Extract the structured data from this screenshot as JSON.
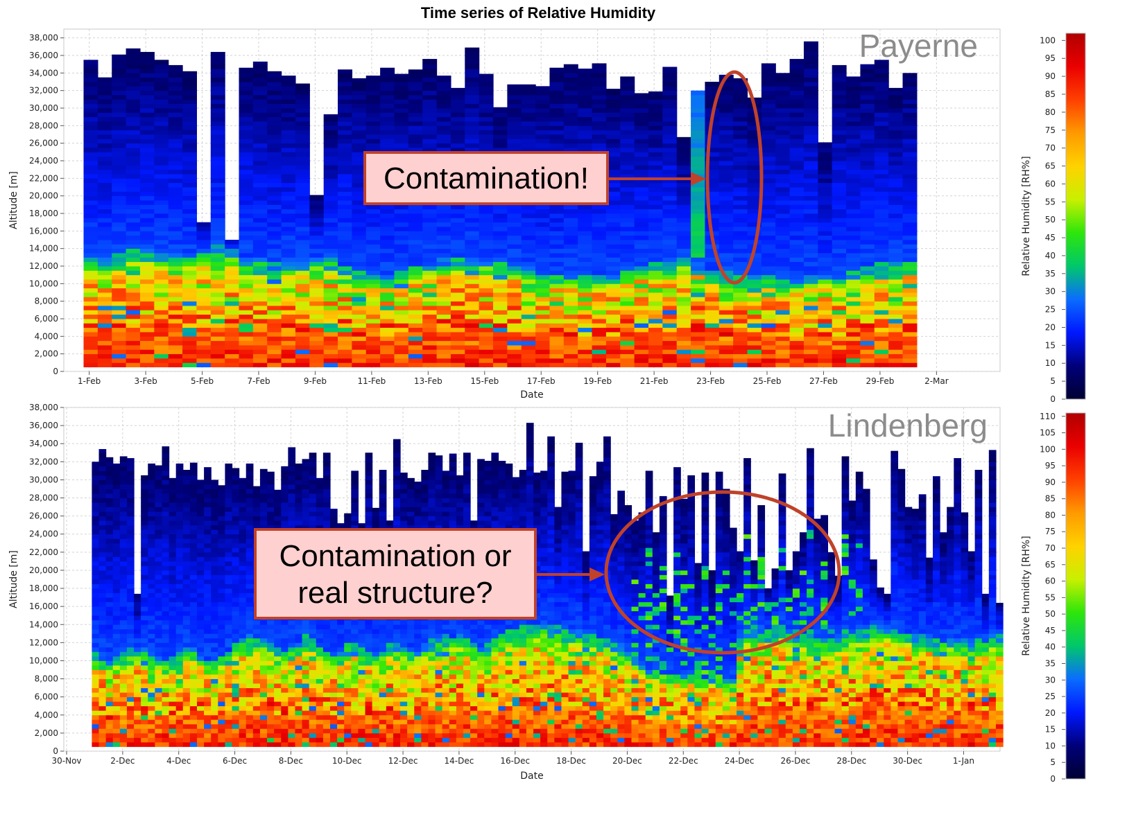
{
  "title": "Time series of Relative Humidity",
  "colorscale": {
    "stops": [
      "#000033",
      "#00007a",
      "#0018ff",
      "#0a6dff",
      "#00c86a",
      "#2ee60a",
      "#c8f000",
      "#ffd200",
      "#ff9a00",
      "#ff4000",
      "#ea0000",
      "#b00000"
    ],
    "no_data": "#ffffff",
    "frame": "#b0b0b0",
    "plot_border": "#c8c8c8",
    "grid": "#d2d2d2"
  },
  "annotation": {
    "arrow_color": "#c0422a",
    "box_fill": "#ffd0d0",
    "box_border": "#c0422a"
  },
  "chart_data": [
    {
      "type": "heatmap",
      "station": "Payerne",
      "xlabel": "Date",
      "ylabel": "Altitude [m]",
      "ylim": [
        0,
        39000
      ],
      "yticks": [
        "0",
        "2,000",
        "4,000",
        "6,000",
        "8,000",
        "10,000",
        "12,000",
        "14,000",
        "16,000",
        "18,000",
        "20,000",
        "22,000",
        "24,000",
        "26,000",
        "28,000",
        "30,000",
        "32,000",
        "34,000",
        "36,000",
        "38,000"
      ],
      "xlim": [
        -0.9,
        32.25
      ],
      "xticks": [
        {
          "x": 0,
          "label": "1-Feb"
        },
        {
          "x": 2,
          "label": "3-Feb"
        },
        {
          "x": 4,
          "label": "5-Feb"
        },
        {
          "x": 6,
          "label": "7-Feb"
        },
        {
          "x": 8,
          "label": "9-Feb"
        },
        {
          "x": 10,
          "label": "11-Feb"
        },
        {
          "x": 12,
          "label": "13-Feb"
        },
        {
          "x": 14,
          "label": "15-Feb"
        },
        {
          "x": 16,
          "label": "17-Feb"
        },
        {
          "x": 18,
          "label": "19-Feb"
        },
        {
          "x": 20,
          "label": "21-Feb"
        },
        {
          "x": 22,
          "label": "23-Feb"
        },
        {
          "x": 24,
          "label": "25-Feb"
        },
        {
          "x": 26,
          "label": "27-Feb"
        },
        {
          "x": 28,
          "label": "29-Feb"
        },
        {
          "x": 30,
          "label": "2-Mar"
        }
      ],
      "profiles_per_day": 2,
      "x_start": -0.2,
      "profile_tops": [
        35500,
        33500,
        36100,
        36800,
        36400,
        35500,
        34900,
        34200,
        17000,
        36400,
        15000,
        34600,
        35300,
        34200,
        33700,
        32800,
        20100,
        29300,
        34400,
        33400,
        33700,
        34600,
        33900,
        34400,
        35600,
        33700,
        32300,
        36900,
        33900,
        30100,
        32700,
        32700,
        32500,
        34600,
        35000,
        34500,
        35100,
        32200,
        33600,
        31700,
        31900,
        34700,
        26700,
        32000,
        33000,
        33800,
        33400,
        31200,
        35100,
        34000,
        35600,
        37600,
        26100,
        34900,
        33600,
        35000,
        35500,
        32300,
        34000
      ],
      "moist_layer_tops": [
        12900,
        12600,
        13400,
        13800,
        13700,
        13500,
        13300,
        13500,
        13900,
        14100,
        13800,
        13200,
        12600,
        12300,
        12500,
        12800,
        12900,
        12600,
        12000,
        11400,
        11000,
        10900,
        11300,
        11900,
        12300,
        12600,
        12800,
        12900,
        12700,
        12400,
        12000,
        11600,
        11300,
        11000,
        10800,
        10600,
        10700,
        11000,
        11400,
        11800,
        12200,
        12600,
        12900,
        12600,
        11800,
        11200,
        10900,
        10700,
        10600,
        10500,
        10500,
        10600,
        10800,
        11000,
        11300,
        11700,
        12100,
        12400,
        12500
      ],
      "contamination_profile": 43,
      "callout": {
        "text": "Contamination!"
      },
      "colorbar": {
        "label": "Relative Humidity [RH%]",
        "min": 0,
        "max": 102,
        "ticks": [
          "0",
          "5",
          "10",
          "15",
          "20",
          "25",
          "30",
          "35",
          "40",
          "45",
          "50",
          "55",
          "60",
          "65",
          "70",
          "75",
          "80",
          "85",
          "90",
          "95",
          "100"
        ]
      }
    },
    {
      "type": "heatmap",
      "station": "Lindenberg",
      "xlabel": "Date",
      "ylabel": "Altitude [m]",
      "ylim": [
        0,
        38000
      ],
      "yticks": [
        "0",
        "2,000",
        "4,000",
        "6,000",
        "8,000",
        "10,000",
        "12,000",
        "14,000",
        "16,000",
        "18,000",
        "20,000",
        "22,000",
        "24,000",
        "26,000",
        "28,000",
        "30,000",
        "32,000",
        "34,000",
        "36,000",
        "38,000"
      ],
      "xlim": [
        -0.1,
        33.3
      ],
      "xticks": [
        {
          "x": 0,
          "label": "30-Nov"
        },
        {
          "x": 2,
          "label": "2-Dec"
        },
        {
          "x": 4,
          "label": "4-Dec"
        },
        {
          "x": 6,
          "label": "6-Dec"
        },
        {
          "x": 8,
          "label": "8-Dec"
        },
        {
          "x": 10,
          "label": "10-Dec"
        },
        {
          "x": 12,
          "label": "12-Dec"
        },
        {
          "x": 14,
          "label": "14-Dec"
        },
        {
          "x": 16,
          "label": "16-Dec"
        },
        {
          "x": 18,
          "label": "18-Dec"
        },
        {
          "x": 20,
          "label": "20-Dec"
        },
        {
          "x": 22,
          "label": "22-Dec"
        },
        {
          "x": 24,
          "label": "24-Dec"
        },
        {
          "x": 26,
          "label": "26-Dec"
        },
        {
          "x": 28,
          "label": "28-Dec"
        },
        {
          "x": 30,
          "label": "30-Dec"
        },
        {
          "x": 32,
          "label": "1-Jan"
        }
      ],
      "profiles_per_day": 4,
      "x_start": 0.9,
      "profile_tops": [
        32000,
        33400,
        32500,
        31800,
        32600,
        32400,
        17400,
        30500,
        31800,
        31600,
        33700,
        30200,
        31800,
        31100,
        31900,
        30000,
        31400,
        30000,
        29400,
        31800,
        31300,
        30200,
        31800,
        29300,
        31200,
        30900,
        28900,
        31500,
        33600,
        31800,
        32300,
        33000,
        30200,
        33000,
        26800,
        25200,
        26300,
        31000,
        25200,
        33000,
        26900,
        31100,
        25500,
        34500,
        30800,
        30200,
        29800,
        31100,
        33000,
        32700,
        31000,
        32900,
        30500,
        33000,
        25500,
        32300,
        32100,
        33000,
        32100,
        31800,
        30300,
        31100,
        36300,
        30800,
        31000,
        34800,
        27000,
        30900,
        31000,
        34100,
        22100,
        30400,
        32000,
        34800,
        26200,
        28800,
        27200,
        25500,
        26400,
        31000,
        24200,
        28200,
        17200,
        31400,
        27900,
        30500,
        20800,
        30800,
        20000,
        30900,
        29000,
        24700,
        22100,
        32400,
        21100,
        27200,
        18000,
        20200,
        30700,
        20000,
        22100,
        24200,
        33500,
        25700,
        26100,
        22000,
        19400,
        32600,
        27700,
        30900,
        29000,
        21200,
        18100,
        17400,
        33200,
        31200,
        27000,
        26800,
        28400,
        21400,
        30400,
        24200,
        27000,
        32400,
        26400,
        22100,
        31100,
        17400,
        33300,
        16400
      ],
      "moist_layer_tops": [
        10600,
        10400,
        9900,
        10300,
        10600,
        11100,
        11400,
        11200,
        10500,
        10200,
        10000,
        10200,
        10700,
        11300,
        11200,
        10600,
        10200,
        9900,
        10500,
        11200,
        11800,
        12300,
        12600,
        12500,
        12300,
        11800,
        11300,
        10900,
        11300,
        12100,
        12800,
        12400,
        11600,
        10900,
        10500,
        10900,
        11700,
        11900,
        11200,
        10600,
        10700,
        11500,
        12000,
        11800,
        11300,
        11000,
        11200,
        11700,
        12100,
        12400,
        12600,
        12700,
        12600,
        12300,
        12000,
        11700,
        11900,
        12400,
        12900,
        13200,
        13500,
        13700,
        13900,
        14000,
        13900,
        13800,
        13600,
        13400,
        13300,
        13200,
        13000,
        12800,
        12500,
        12100,
        11800,
        11600,
        10800,
        10200,
        9500,
        9100,
        8900,
        8800,
        8700,
        8600,
        8500,
        8400,
        8300,
        8200,
        8100,
        8000,
        7900,
        7800,
        12900,
        13200,
        13400,
        13600,
        13700,
        13700,
        13600,
        13300,
        13100,
        12900,
        12700,
        12500,
        12400,
        12300,
        12400,
        12700,
        13000,
        13300,
        13500,
        13700,
        13800,
        13700,
        13500,
        13300,
        13100,
        12900,
        12700,
        12600,
        12500,
        12400,
        12300,
        12300,
        12200,
        12300,
        12400,
        12500,
        12600,
        12700
      ],
      "callout": {
        "text_line1": "Contamination or",
        "text_line2": "real structure?"
      },
      "colorbar": {
        "label": "Relative Humidity [RH%]",
        "min": 0,
        "max": 111,
        "ticks": [
          "0",
          "5",
          "10",
          "15",
          "20",
          "25",
          "30",
          "35",
          "40",
          "45",
          "50",
          "55",
          "60",
          "65",
          "70",
          "75",
          "80",
          "85",
          "90",
          "95",
          "100",
          "105",
          "110"
        ]
      }
    }
  ]
}
